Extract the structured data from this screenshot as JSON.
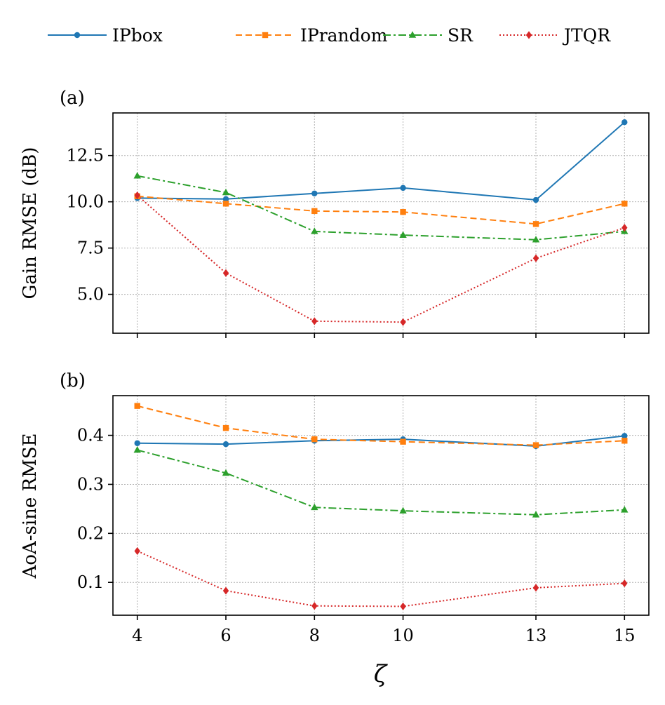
{
  "legend": [
    {
      "name": "IPbox",
      "color": "#1f77b4",
      "dash": "",
      "marker": "circle"
    },
    {
      "name": "IPrandom",
      "color": "#ff7f0e",
      "dash": "9,5",
      "marker": "square"
    },
    {
      "name": "SR",
      "color": "#2ca02c",
      "dash": "11,4,3,4",
      "marker": "triangle"
    },
    {
      "name": "JTQR",
      "color": "#d62728",
      "dash": "2,3",
      "marker": "diamond"
    }
  ],
  "chart_data": [
    {
      "type": "line",
      "panel_label": "(a)",
      "title": "",
      "xlabel": "",
      "ylabel": "Gain RMSE (dB)",
      "x": [
        4,
        6,
        8,
        10,
        13,
        15
      ],
      "xlim": [
        3.45,
        15.55
      ],
      "ylim": [
        2.9,
        14.8
      ],
      "yticks": [
        5.0,
        7.5,
        10.0,
        12.5
      ],
      "ytick_labels": [
        "5.0",
        "7.5",
        "10.0",
        "12.5"
      ],
      "grid": true,
      "series": [
        {
          "name": "IPbox",
          "values": [
            10.2,
            10.15,
            10.45,
            10.75,
            10.1,
            14.3
          ]
        },
        {
          "name": "IPrandom",
          "values": [
            10.3,
            9.9,
            9.5,
            9.45,
            8.8,
            9.9
          ]
        },
        {
          "name": "SR",
          "values": [
            11.4,
            10.5,
            8.4,
            8.2,
            7.95,
            8.4
          ]
        },
        {
          "name": "JTQR",
          "values": [
            10.35,
            6.15,
            3.55,
            3.5,
            6.95,
            8.6
          ]
        }
      ]
    },
    {
      "type": "line",
      "panel_label": "(b)",
      "title": "",
      "xlabel": "ζ",
      "ylabel": "AoA-sine RMSE",
      "x": [
        4,
        6,
        8,
        10,
        13,
        15
      ],
      "xlim": [
        3.45,
        15.55
      ],
      "ylim": [
        0.033,
        0.481
      ],
      "yticks": [
        0.1,
        0.2,
        0.3,
        0.4
      ],
      "ytick_labels": [
        "0.1",
        "0.2",
        "0.3",
        "0.4"
      ],
      "xticks": [
        4,
        6,
        8,
        10,
        13,
        15
      ],
      "xtick_labels": [
        "4",
        "6",
        "8",
        "10",
        "13",
        "15"
      ],
      "grid": true,
      "series": [
        {
          "name": "IPbox",
          "values": [
            0.384,
            0.382,
            0.389,
            0.392,
            0.378,
            0.399
          ]
        },
        {
          "name": "IPrandom",
          "values": [
            0.46,
            0.415,
            0.392,
            0.387,
            0.38,
            0.389
          ]
        },
        {
          "name": "SR",
          "values": [
            0.37,
            0.323,
            0.253,
            0.246,
            0.238,
            0.248
          ]
        },
        {
          "name": "JTQR",
          "values": [
            0.164,
            0.083,
            0.052,
            0.051,
            0.089,
            0.098
          ]
        }
      ]
    }
  ]
}
